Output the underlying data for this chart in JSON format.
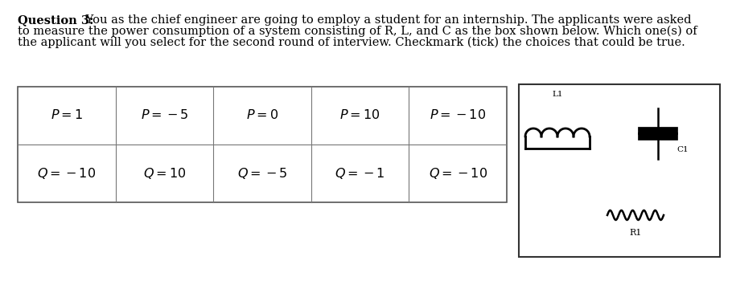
{
  "title_bold": "Question 3:",
  "title_normal": " You as the chief engineer are going to employ a student for an internship. The applicants were asked\nto measure the power consumption of a system consisting of R, L, and C as the box shown below. Which one(s) of\nthe applicant will you select for the second round of interview. Checkmark (tick) the choices that could be true.",
  "table_cells_row1": [
    "P = 1",
    "P = -5",
    "P = 0",
    "P = 10",
    "P = -10"
  ],
  "table_cells_row2": [
    "Q = -10",
    "Q = 10",
    "Q = -5",
    "Q = -1",
    "Q = -10"
  ],
  "background_color": "#ffffff",
  "text_color": "#000000",
  "font_size_question": 10.5,
  "font_size_cell": 11.5,
  "inductor_label": "L1",
  "capacitor_label": "C1",
  "resistor_label": "R1"
}
